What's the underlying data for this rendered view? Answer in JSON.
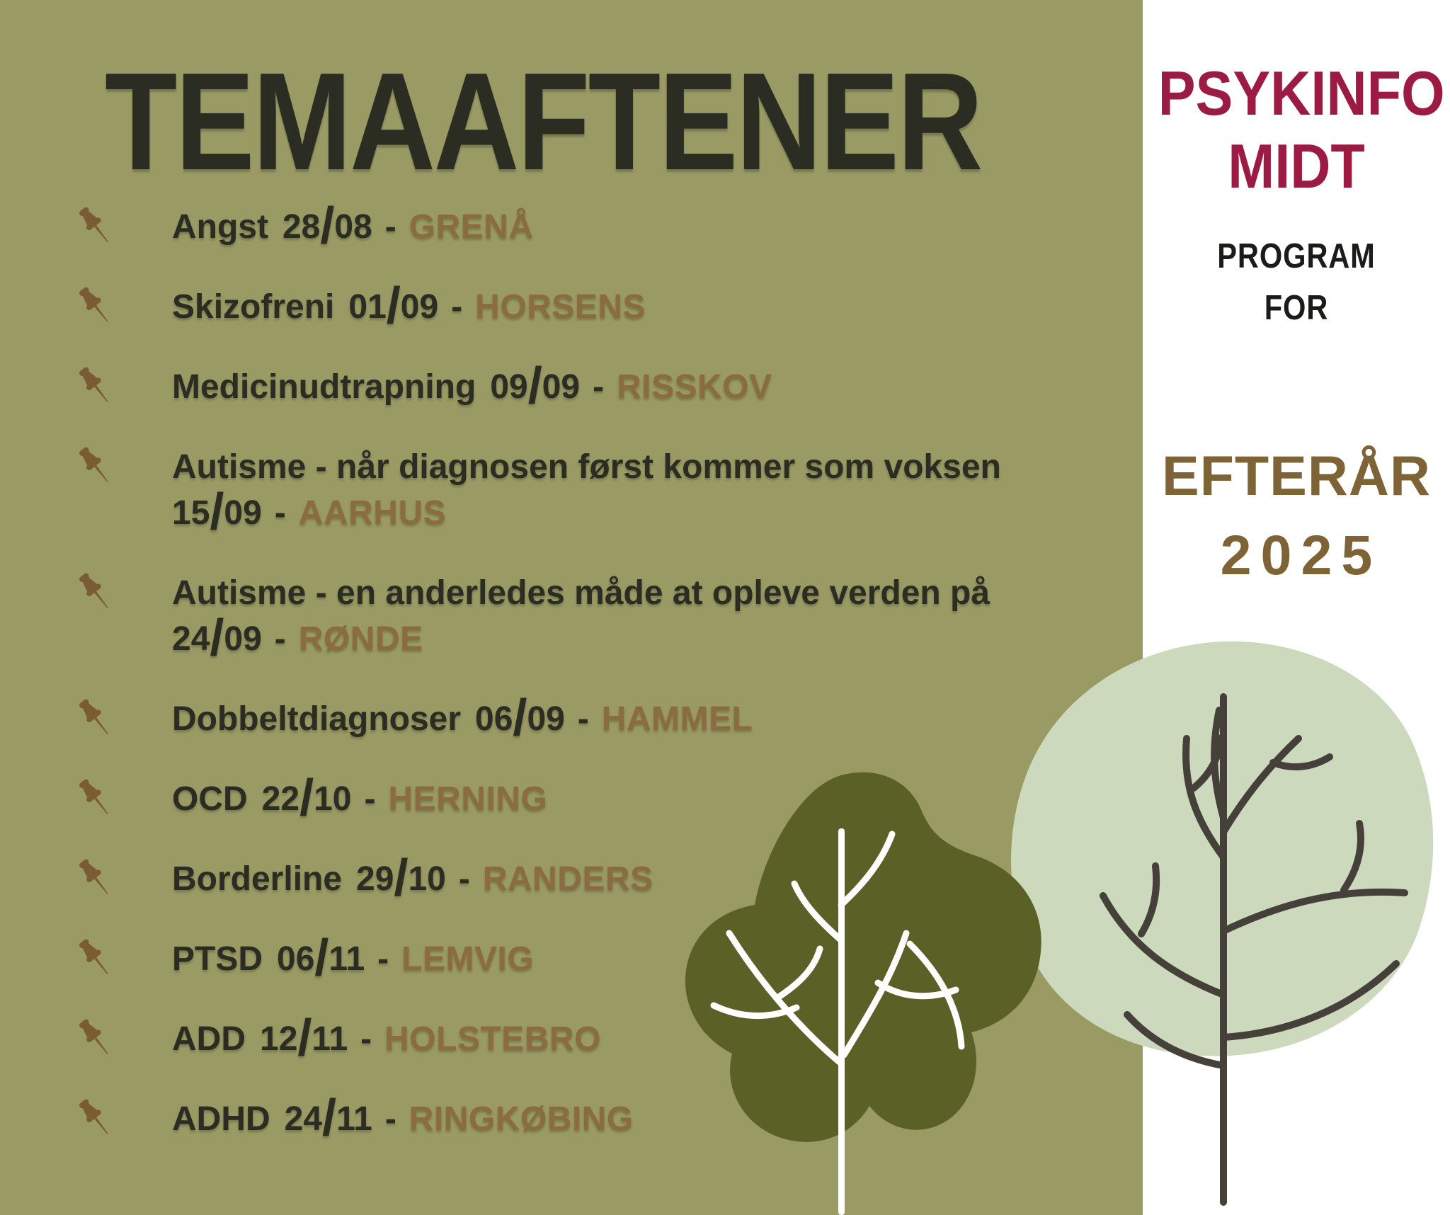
{
  "title": "TEMAAFTENER",
  "events": [
    {
      "topic": "Angst",
      "date": "28/08",
      "location": "GRENÅ",
      "two_line": false
    },
    {
      "topic": "Skizofreni",
      "date": "01/09",
      "location": "HORSENS",
      "two_line": false
    },
    {
      "topic": "Medicinudtrapning",
      "date": "09/09",
      "location": "RISSKOV",
      "two_line": false
    },
    {
      "topic": "Autisme - når diagnosen først kommer som voksen",
      "date": "15/09",
      "location": "AARHUS",
      "two_line": true
    },
    {
      "topic": "Autisme - en anderledes måde at opleve verden på",
      "date": "24/09",
      "location": "RØNDE",
      "two_line": true
    },
    {
      "topic": "Dobbeltdiagnoser",
      "date": "06/09",
      "location": "HAMMEL",
      "two_line": false
    },
    {
      "topic": "OCD",
      "date": "22/10",
      "location": "HERNING",
      "two_line": false
    },
    {
      "topic": "Borderline",
      "date": "29/10",
      "location": "RANDERS",
      "two_line": false
    },
    {
      "topic": "PTSD",
      "date": "06/11",
      "location": "LEMVIG",
      "two_line": false
    },
    {
      "topic": "ADD",
      "date": "12/11",
      "location": "HOLSTEBRO",
      "two_line": false
    },
    {
      "topic": "ADHD",
      "date": "24/11",
      "location": "RINGKØBING",
      "two_line": false
    }
  ],
  "event_dash": "-",
  "right_column": {
    "org_line1": "PSYKINFO",
    "org_line2": "MIDT",
    "program_line1": "PROGRAM",
    "program_line2": "FOR",
    "season_line1": "EFTERÅR",
    "season_line2": "2025"
  },
  "icons": {
    "list_marker": "pushpin-icon",
    "illustrations": [
      "dark-tree-illustration",
      "light-tree-illustration"
    ]
  },
  "colors": {
    "background_olive": "#9a9b64",
    "text_dark": "#2b2d22",
    "location_brown": "#8a6c3e",
    "pin_brown": "#7a5c33",
    "brand_crimson": "#9c1b42",
    "season_brown": "#7e6336",
    "program_black": "#1b1b19",
    "canopy_light": "#ccd9bc",
    "canopy_dark": "#5a6026",
    "trunk_dark": "#45413a",
    "white": "#ffffff"
  }
}
